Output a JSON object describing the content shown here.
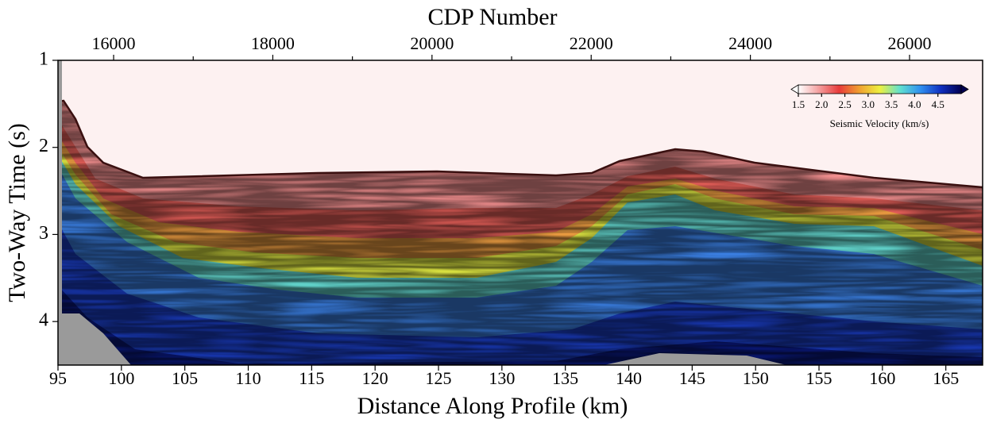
{
  "chart_data": {
    "type": "image",
    "x2_label": "CDP Number",
    "x_label": "Distance Along Profile (km)",
    "y_label": "Two-Way Time (s)",
    "xlim": [
      95,
      167.9
    ],
    "xticks": [
      95,
      100,
      105,
      110,
      115,
      120,
      125,
      130,
      135,
      140,
      145,
      150,
      155,
      160,
      165
    ],
    "x2lim": [
      15301,
      26918
    ],
    "x2ticks": [
      16000,
      18000,
      20000,
      22000,
      24000,
      26000
    ],
    "x2minor_ticks": [
      17000,
      19000,
      21000,
      23000,
      25000
    ],
    "ylim": [
      4.5,
      1
    ],
    "yticks": [
      1,
      2,
      3,
      4
    ],
    "colorbar": {
      "label": "Seismic Velocity (km/s)",
      "lim": [
        1.5,
        5.0
      ],
      "ticks": [
        1.5,
        2.0,
        2.5,
        3.0,
        3.5,
        4.0,
        4.5
      ],
      "colors": [
        "#ffffff",
        "#f4a0a0",
        "#e83a3a",
        "#f0a030",
        "#eef040",
        "#60e0d0",
        "#3090f0",
        "#1030c0",
        "#000050"
      ]
    }
  }
}
